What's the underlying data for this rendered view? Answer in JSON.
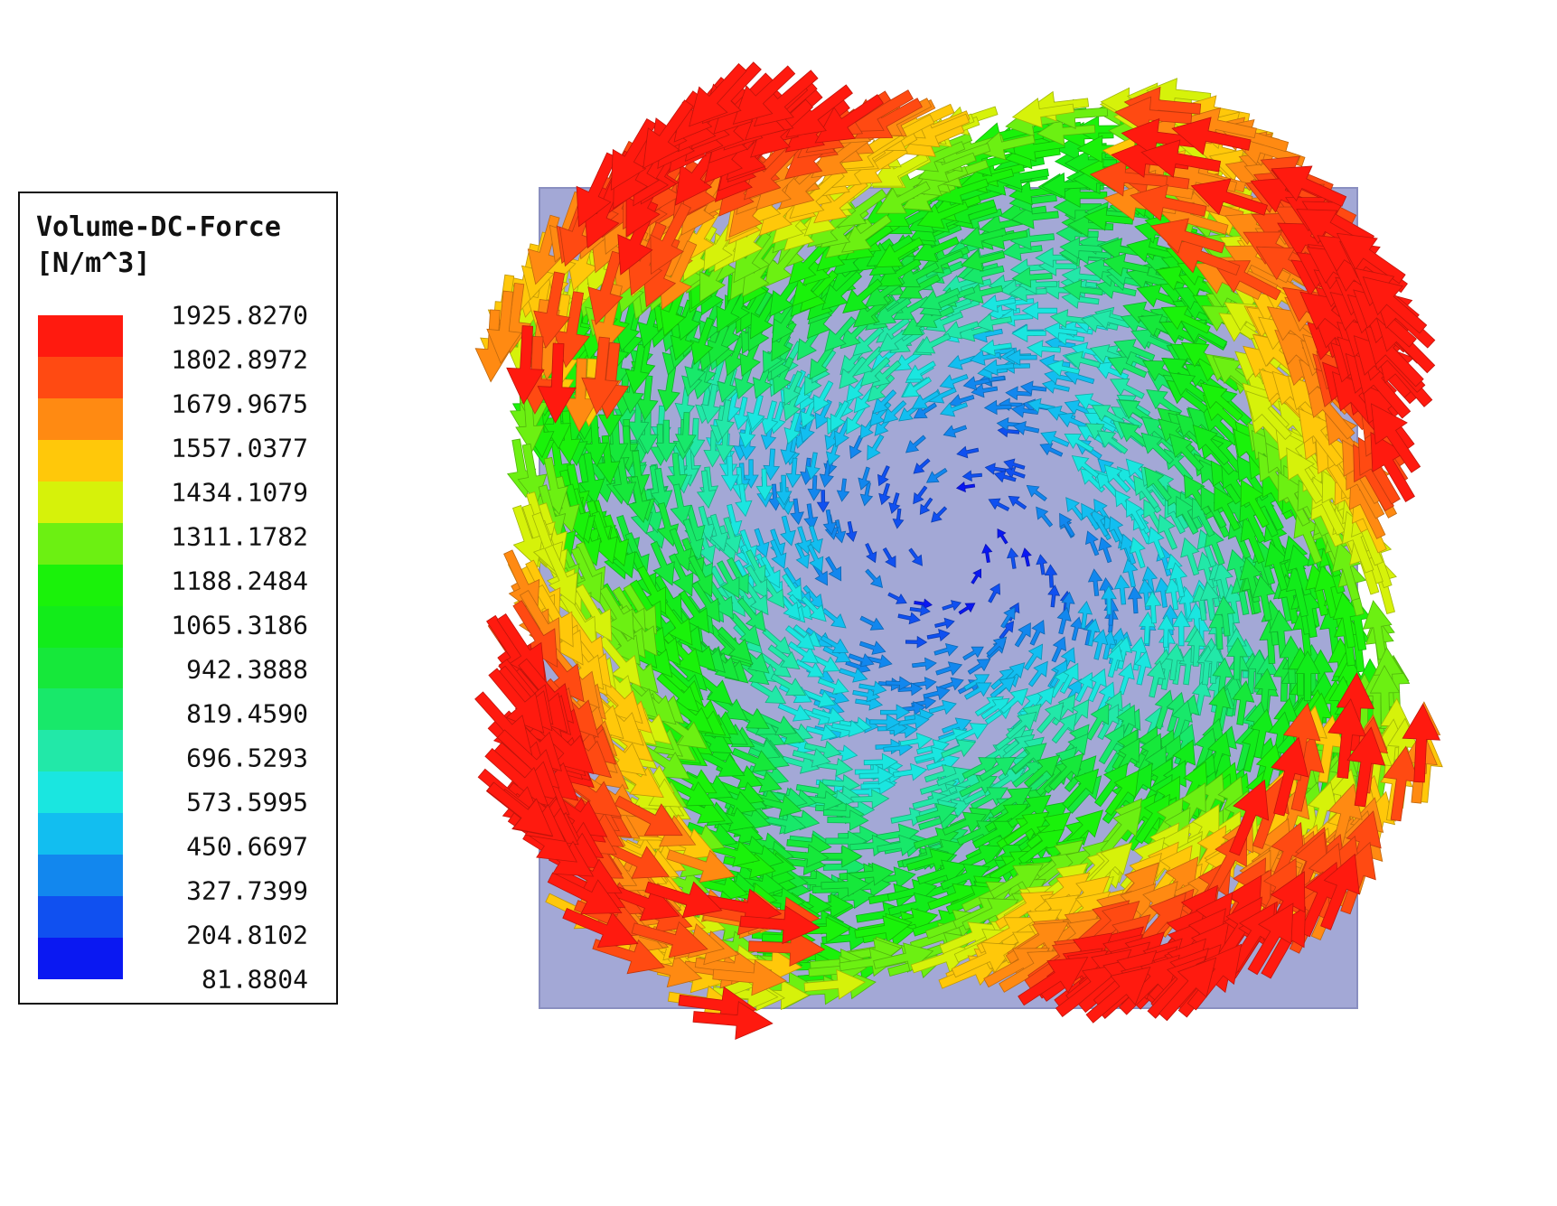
{
  "legend": {
    "title_line1": "Volume-DC-Force",
    "title_line2": "[N/m^3]",
    "values": [
      "1925.8270",
      "1802.8972",
      "1679.9675",
      "1557.0377",
      "1434.1079",
      "1311.1782",
      "1188.2484",
      "1065.3186",
      "942.3888",
      "819.4590",
      "696.5293",
      "573.5995",
      "450.6697",
      "327.7399",
      "204.8102",
      "81.8804"
    ],
    "band_colors": [
      "#ff1a0f",
      "#ff4a12",
      "#ff8a12",
      "#ffc80a",
      "#d6f20a",
      "#6cf012",
      "#1af20a",
      "#12ec1a",
      "#16e83a",
      "#18e86a",
      "#22e8a8",
      "#1ae6e0",
      "#12bef0",
      "#1287ee",
      "#1050f0",
      "#0a18f2"
    ]
  },
  "colors": {
    "plate": "#a3a8d6",
    "plate_edge": "#8a8fc0"
  }
}
